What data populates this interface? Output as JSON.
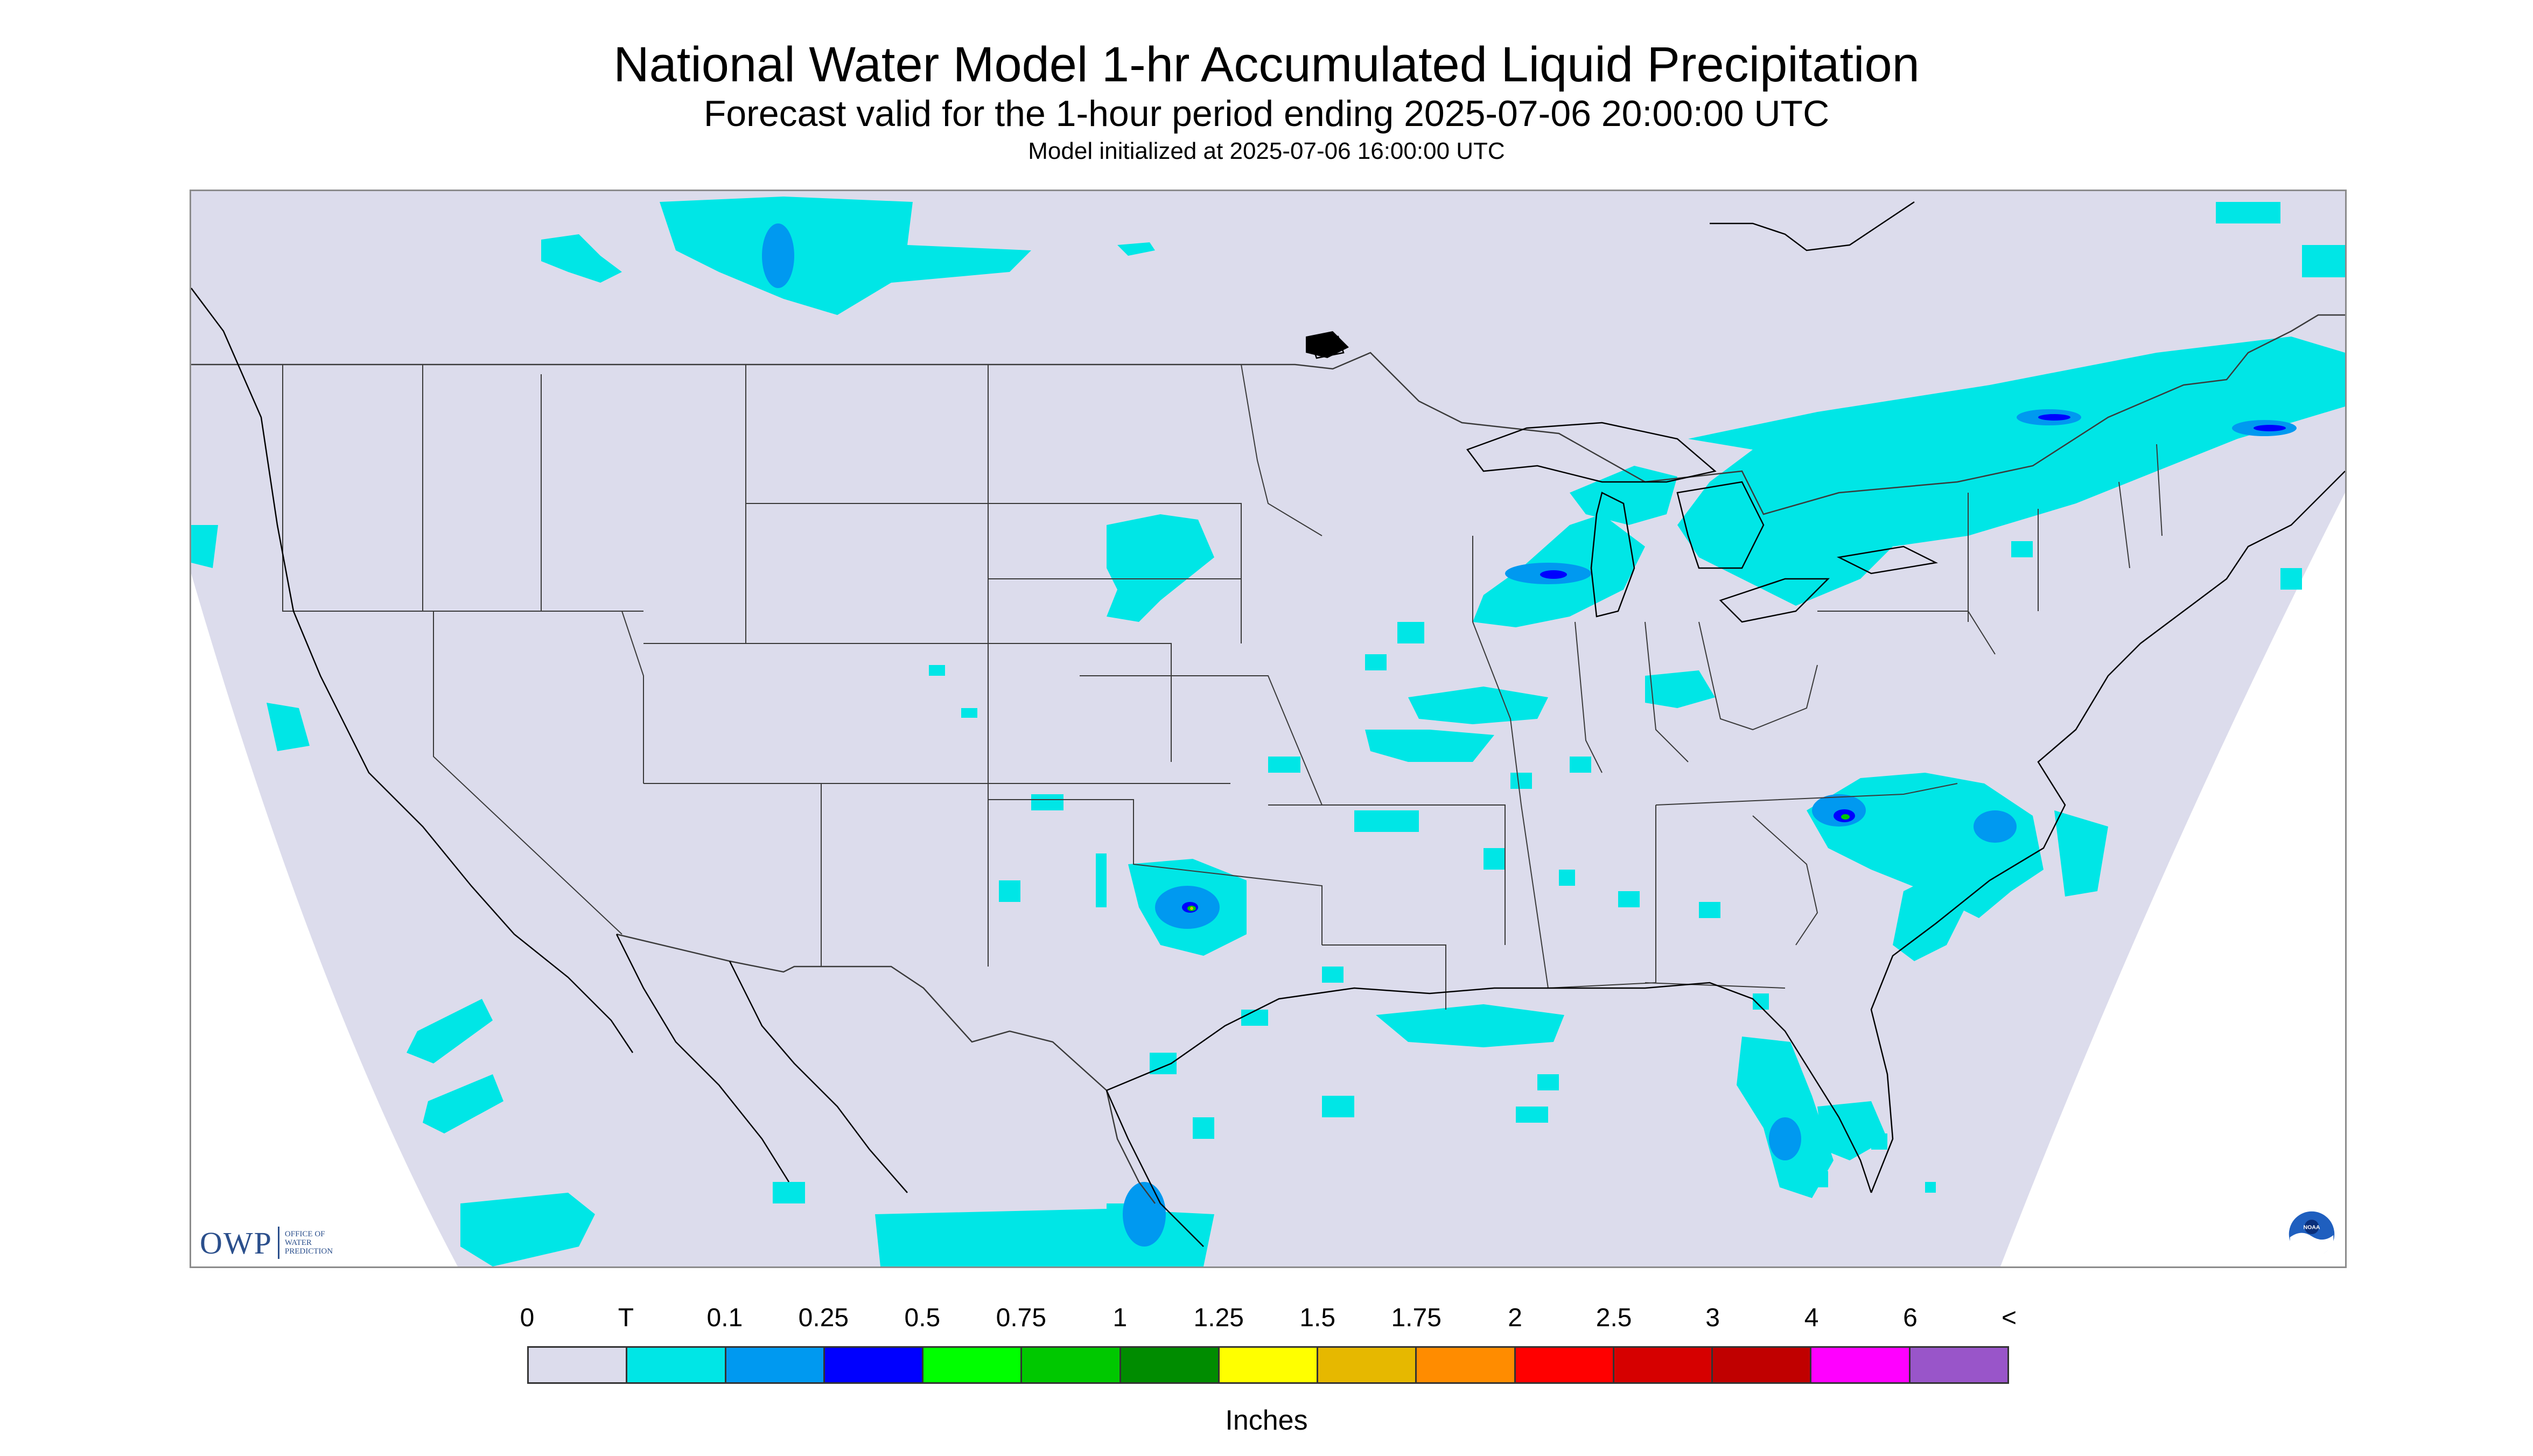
{
  "header": {
    "title": "National Water Model 1-hr Accumulated Liquid Precipitation",
    "subtitle": "Forecast valid for the 1-hour period ending 2025-07-06 20:00:00 UTC",
    "initialized": "Model initialized at 2025-07-06 16:00:00 UTC"
  },
  "map": {
    "background_color": "#dcdcec",
    "outside_domain_color": "#ffffff",
    "border_color": "#3a3a3a",
    "coast_color": "#000000",
    "icons": {
      "owp": "owp-logo",
      "noaa": "noaa-logo"
    },
    "owp_logo": {
      "mark": "OWP",
      "text": "OFFICE OF WATER PREDICTION"
    },
    "noaa_logo": {
      "text": "NOAA"
    }
  },
  "legend": {
    "labels": [
      "0",
      "T",
      "0.1",
      "0.25",
      "0.5",
      "0.75",
      "1",
      "1.25",
      "1.5",
      "1.75",
      "2",
      "2.5",
      "3",
      "4",
      "6",
      "<"
    ],
    "colors": [
      "#dcdcec",
      "#00e6e6",
      "#0099f0",
      "#0000ff",
      "#00ff00",
      "#00c800",
      "#008c00",
      "#ffff00",
      "#e6b800",
      "#ff8c00",
      "#ff0000",
      "#d60000",
      "#c00000",
      "#ff00ff",
      "#9955c9"
    ],
    "units": "Inches"
  }
}
